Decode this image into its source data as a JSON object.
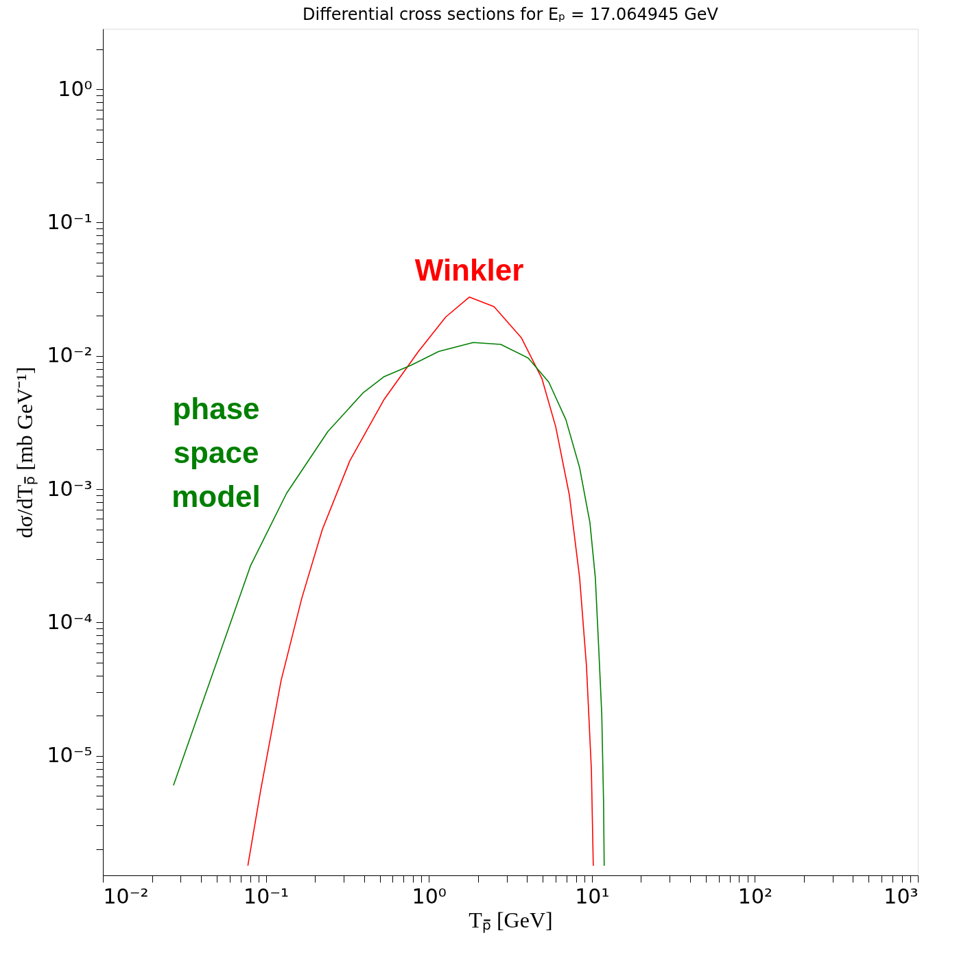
{
  "chart_data": {
    "type": "line",
    "title": "Differential cross sections for Eₚ = 17.064945 GeV",
    "xlabel": "Tₚ̄ [GeV]",
    "ylabel": "dσ/dTₚ̄ [mb GeV⁻¹]",
    "log": "xy",
    "grid": false,
    "xlim": [
      0.01,
      1000
    ],
    "ylim": [
      1.27e-06,
      2.84
    ],
    "xticks": [
      {
        "value": 0.01,
        "label": "10⁻²"
      },
      {
        "value": 0.02,
        "label": null
      },
      {
        "value": 0.03,
        "label": null
      },
      {
        "value": 0.04,
        "label": null
      },
      {
        "value": 0.05,
        "label": null
      },
      {
        "value": 0.06,
        "label": null
      },
      {
        "value": 0.07,
        "label": null
      },
      {
        "value": 0.08,
        "label": null
      },
      {
        "value": 0.09,
        "label": null
      },
      {
        "value": 0.1,
        "label": "10⁻¹"
      },
      {
        "value": 0.2,
        "label": null
      },
      {
        "value": 0.3,
        "label": null
      },
      {
        "value": 0.4,
        "label": null
      },
      {
        "value": 0.5,
        "label": null
      },
      {
        "value": 0.6,
        "label": null
      },
      {
        "value": 0.7,
        "label": null
      },
      {
        "value": 0.8,
        "label": null
      },
      {
        "value": 0.9,
        "label": null
      },
      {
        "value": 1,
        "label": "10⁰"
      },
      {
        "value": 2,
        "label": null
      },
      {
        "value": 3,
        "label": null
      },
      {
        "value": 4,
        "label": null
      },
      {
        "value": 5,
        "label": null
      },
      {
        "value": 6,
        "label": null
      },
      {
        "value": 7,
        "label": null
      },
      {
        "value": 8,
        "label": null
      },
      {
        "value": 9,
        "label": null
      },
      {
        "value": 10,
        "label": "10¹"
      },
      {
        "value": 20,
        "label": null
      },
      {
        "value": 30,
        "label": null
      },
      {
        "value": 40,
        "label": null
      },
      {
        "value": 50,
        "label": null
      },
      {
        "value": 60,
        "label": null
      },
      {
        "value": 70,
        "label": null
      },
      {
        "value": 80,
        "label": null
      },
      {
        "value": 90,
        "label": null
      },
      {
        "value": 100,
        "label": "10²"
      },
      {
        "value": 200,
        "label": null
      },
      {
        "value": 300,
        "label": null
      },
      {
        "value": 400,
        "label": null
      },
      {
        "value": 500,
        "label": null
      },
      {
        "value": 600,
        "label": null
      },
      {
        "value": 700,
        "label": null
      },
      {
        "value": 800,
        "label": null
      },
      {
        "value": 900,
        "label": null
      },
      {
        "value": 1000,
        "label": "10³"
      }
    ],
    "yticks": [
      {
        "value": 2e-06,
        "label": null
      },
      {
        "value": 3e-06,
        "label": null
      },
      {
        "value": 4e-06,
        "label": null
      },
      {
        "value": 5e-06,
        "label": null
      },
      {
        "value": 6e-06,
        "label": null
      },
      {
        "value": 7e-06,
        "label": null
      },
      {
        "value": 8e-06,
        "label": null
      },
      {
        "value": 9e-06,
        "label": null
      },
      {
        "value": 1e-05,
        "label": "10⁻⁵"
      },
      {
        "value": 2e-05,
        "label": null
      },
      {
        "value": 3e-05,
        "label": null
      },
      {
        "value": 4e-05,
        "label": null
      },
      {
        "value": 5e-05,
        "label": null
      },
      {
        "value": 6e-05,
        "label": null
      },
      {
        "value": 7e-05,
        "label": null
      },
      {
        "value": 8e-05,
        "label": null
      },
      {
        "value": 9e-05,
        "label": null
      },
      {
        "value": 0.0001,
        "label": "10⁻⁴"
      },
      {
        "value": 0.0002,
        "label": null
      },
      {
        "value": 0.0003,
        "label": null
      },
      {
        "value": 0.0004,
        "label": null
      },
      {
        "value": 0.0005,
        "label": null
      },
      {
        "value": 0.0006,
        "label": null
      },
      {
        "value": 0.0007,
        "label": null
      },
      {
        "value": 0.0008,
        "label": null
      },
      {
        "value": 0.0009,
        "label": null
      },
      {
        "value": 0.001,
        "label": "10⁻³"
      },
      {
        "value": 0.002,
        "label": null
      },
      {
        "value": 0.003,
        "label": null
      },
      {
        "value": 0.004,
        "label": null
      },
      {
        "value": 0.005,
        "label": null
      },
      {
        "value": 0.006,
        "label": null
      },
      {
        "value": 0.007,
        "label": null
      },
      {
        "value": 0.008,
        "label": null
      },
      {
        "value": 0.009,
        "label": null
      },
      {
        "value": 0.01,
        "label": "10⁻²"
      },
      {
        "value": 0.02,
        "label": null
      },
      {
        "value": 0.03,
        "label": null
      },
      {
        "value": 0.04,
        "label": null
      },
      {
        "value": 0.05,
        "label": null
      },
      {
        "value": 0.06,
        "label": null
      },
      {
        "value": 0.07,
        "label": null
      },
      {
        "value": 0.08,
        "label": null
      },
      {
        "value": 0.09,
        "label": null
      },
      {
        "value": 0.1,
        "label": "10⁻¹"
      },
      {
        "value": 0.2,
        "label": null
      },
      {
        "value": 0.3,
        "label": null
      },
      {
        "value": 0.4,
        "label": null
      },
      {
        "value": 0.5,
        "label": null
      },
      {
        "value": 0.6,
        "label": null
      },
      {
        "value": 0.7,
        "label": null
      },
      {
        "value": 0.8,
        "label": null
      },
      {
        "value": 0.9,
        "label": null
      },
      {
        "value": 1,
        "label": "10⁰"
      },
      {
        "value": 2,
        "label": null
      }
    ],
    "series": [
      {
        "color": "#ff0000",
        "x": [
          0.0775,
          0.0929,
          0.124,
          0.166,
          0.222,
          0.327,
          0.532,
          0.863,
          1.27,
          1.77,
          2.51,
          3.69,
          4.94,
          6.0,
          7.28,
          8.41,
          9.27,
          9.93,
          10.2
        ],
        "values": [
          1.5e-06,
          5.53e-06,
          3.68e-05,
          0.000152,
          0.000499,
          0.00163,
          0.00473,
          0.0108,
          0.0196,
          0.0276,
          0.0234,
          0.0137,
          0.00675,
          0.00294,
          0.0009,
          0.000217,
          4.67e-05,
          7.89e-06,
          1.5e-06
        ]
      },
      {
        "color": "#007f00",
        "x": [
          0.0271,
          0.0804,
          0.134,
          0.24,
          0.397,
          0.532,
          0.784,
          1.15,
          1.87,
          2.76,
          4.07,
          5.44,
          6.93,
          8.41,
          9.73,
          10.5,
          11.0,
          11.5,
          11.8,
          11.9
        ],
        "values": [
          6.01e-06,
          0.000266,
          0.000933,
          0.00271,
          0.00532,
          0.007,
          0.00855,
          0.0108,
          0.0126,
          0.0122,
          0.00963,
          0.00636,
          0.00332,
          0.00145,
          0.000561,
          0.000217,
          6.65e-05,
          2.04e-05,
          4.37e-06,
          1.5e-06
        ]
      }
    ],
    "annotations": [
      "Winkler",
      "phase space model"
    ]
  }
}
